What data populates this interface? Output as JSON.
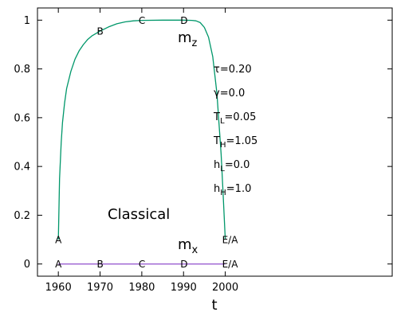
{
  "chart_data": {
    "type": "line",
    "xlabel": "t",
    "ylabel": "",
    "xlim": [
      1955,
      2040
    ],
    "ylim": [
      -0.05,
      1.05
    ],
    "xticks": [
      1960,
      1970,
      1980,
      1990,
      2000
    ],
    "yticks": [
      0,
      0.2,
      0.4,
      0.6,
      0.8,
      1
    ],
    "grid": false,
    "series": [
      {
        "name": "m_z",
        "color": "#00976a",
        "x": [
          1960,
          1960.3,
          1960.7,
          1961,
          1961.5,
          1962,
          1963,
          1964,
          1965,
          1966,
          1967,
          1968,
          1970,
          1972,
          1974,
          1976,
          1978,
          1980,
          1985,
          1990,
          1992,
          1993,
          1994,
          1995,
          1996,
          1997,
          1998,
          1999,
          1999.5,
          2000
        ],
        "values": [
          0.1,
          0.35,
          0.5,
          0.58,
          0.66,
          0.72,
          0.79,
          0.84,
          0.875,
          0.9,
          0.92,
          0.935,
          0.955,
          0.972,
          0.985,
          0.993,
          0.997,
          0.999,
          1.0,
          1.0,
          0.999,
          0.997,
          0.99,
          0.97,
          0.93,
          0.85,
          0.7,
          0.45,
          0.28,
          0.1
        ]
      },
      {
        "name": "m_x",
        "color": "#9a5fd1",
        "x": [
          1960,
          2000
        ],
        "values": [
          0.0,
          0.0
        ]
      }
    ],
    "point_labels": [
      {
        "text": "A",
        "x": 1960,
        "y": 0.1
      },
      {
        "text": "B",
        "x": 1970,
        "y": 0.955
      },
      {
        "text": "C",
        "x": 1980,
        "y": 1.0
      },
      {
        "text": "D",
        "x": 1990,
        "y": 1.0
      },
      {
        "text": "E/A",
        "x": 2000,
        "y": 0.1
      },
      {
        "text": "A",
        "x": 1960,
        "y": 0.0
      },
      {
        "text": "B",
        "x": 1970,
        "y": 0.0
      },
      {
        "text": "C",
        "x": 1980,
        "y": 0.0
      },
      {
        "text": "D",
        "x": 1990,
        "y": 0.0
      },
      {
        "text": "E/A",
        "x": 2000,
        "y": 0.0
      }
    ],
    "annotations": {
      "mz_label": {
        "base": "m",
        "sub": "z"
      },
      "mx_label": {
        "base": "m",
        "sub": "x"
      },
      "classical": "Classical",
      "params": [
        {
          "base": "τ=0.20",
          "sub": "",
          "rest": ""
        },
        {
          "base": "γ=0.0",
          "sub": "",
          "rest": ""
        },
        {
          "base": "T",
          "sub": "L",
          "rest": "=0.05"
        },
        {
          "base": "T",
          "sub": "H",
          "rest": "=1.05"
        },
        {
          "base": "h",
          "sub": "L",
          "rest": "=0.0"
        },
        {
          "base": "h",
          "sub": "H",
          "rest": "=1.0"
        }
      ]
    }
  }
}
